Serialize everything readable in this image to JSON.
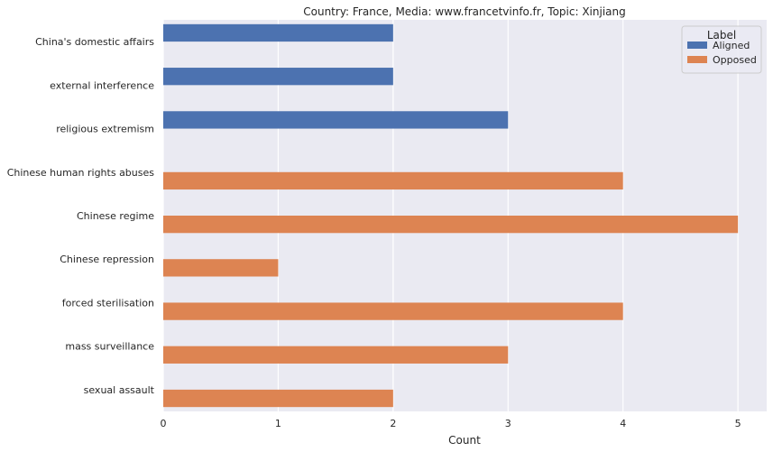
{
  "chart_data": {
    "type": "bar",
    "orientation": "horizontal",
    "title": "Country: France, Media: www.francetvinfo.fr, Topic: Xinjiang",
    "xlabel": "Count",
    "ylabel": "",
    "xlim": [
      0,
      5.25
    ],
    "xticks": [
      0,
      1,
      2,
      3,
      4,
      5
    ],
    "grid": true,
    "legend_title": "Label",
    "legend_position": "top-right",
    "categories": [
      "China's domestic affairs",
      "external interference",
      "religious extremism",
      "Chinese human rights abuses",
      "Chinese regime",
      "Chinese repression",
      "forced sterilisation",
      "mass surveillance",
      "sexual assault"
    ],
    "series": [
      {
        "name": "Aligned",
        "color": "#4c72b0",
        "values": [
          2,
          2,
          3,
          null,
          null,
          null,
          null,
          null,
          null
        ]
      },
      {
        "name": "Opposed",
        "color": "#dd8452",
        "values": [
          null,
          null,
          null,
          4,
          5,
          1,
          4,
          3,
          2
        ]
      }
    ]
  },
  "style": {
    "plot_background": "#eaeaf2",
    "grid_color": "#ffffff"
  }
}
